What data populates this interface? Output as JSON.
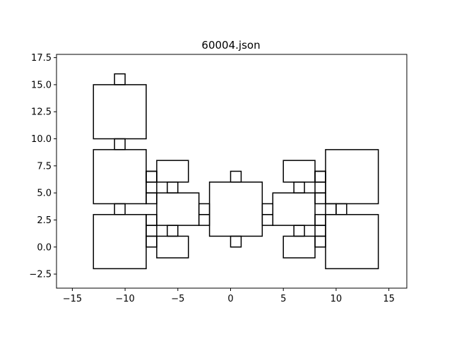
{
  "chart_data": {
    "type": "diagram-rectangles",
    "title": "60004.json",
    "xlabel": "",
    "ylabel": "",
    "xlim": [
      -16.5,
      16.7
    ],
    "ylim": [
      -3.8,
      17.8
    ],
    "xticks": [
      -15,
      -10,
      -5,
      0,
      5,
      10,
      15
    ],
    "yticks": [
      -2.5,
      0.0,
      2.5,
      5.0,
      7.5,
      10.0,
      12.5,
      15.0,
      17.5
    ],
    "xtick_labels": [
      "−15",
      "−10",
      "−5",
      "0",
      "5",
      "10",
      "15"
    ],
    "ytick_labels": [
      "−2.5",
      "0.0",
      "2.5",
      "5.0",
      "7.5",
      "10.0",
      "12.5",
      "15.0",
      "17.5"
    ],
    "grid": false,
    "line_color": "#000000",
    "rectangles": [
      {
        "x0": -13,
        "y0": 10,
        "x1": -8,
        "y1": 15
      },
      {
        "x0": -11,
        "y0": 15,
        "x1": -10,
        "y1": 16
      },
      {
        "x0": -11,
        "y0": 9,
        "x1": -10,
        "y1": 10
      },
      {
        "x0": -13,
        "y0": 4,
        "x1": -8,
        "y1": 9
      },
      {
        "x0": -11,
        "y0": 3,
        "x1": -10,
        "y1": 4
      },
      {
        "x0": -13,
        "y0": -2,
        "x1": -8,
        "y1": 3
      },
      {
        "x0": -8,
        "y0": 7,
        "x1": -7,
        "y1": 6
      },
      {
        "x0": -8,
        "y0": 6,
        "x1": -7,
        "y1": 7
      },
      {
        "x0": -7,
        "y0": 6,
        "x1": -4,
        "y1": 8
      },
      {
        "x0": -8,
        "y0": 5,
        "x1": -7,
        "y1": 6
      },
      {
        "x0": -6,
        "y0": 5,
        "x1": -5,
        "y1": 6
      },
      {
        "x0": -8,
        "y0": 4,
        "x1": -7,
        "y1": 5
      },
      {
        "x0": -7,
        "y0": 2,
        "x1": -3,
        "y1": 5
      },
      {
        "x0": -8,
        "y0": 2,
        "x1": -7,
        "y1": 3
      },
      {
        "x0": -8,
        "y0": 1,
        "x1": -7,
        "y1": 2
      },
      {
        "x0": -6,
        "y0": 1,
        "x1": -5,
        "y1": 2
      },
      {
        "x0": -8,
        "y0": 0,
        "x1": -7,
        "y1": 1
      },
      {
        "x0": -7,
        "y0": -1,
        "x1": -4,
        "y1": 1
      },
      {
        "x0": -3,
        "y0": 3,
        "x1": -2,
        "y1": 4
      },
      {
        "x0": -3,
        "y0": 2,
        "x1": -2,
        "y1": 3
      },
      {
        "x0": -2,
        "y0": 1,
        "x1": 3,
        "y1": 6
      },
      {
        "x0": 0,
        "y0": 6,
        "x1": 1,
        "y1": 7
      },
      {
        "x0": 0,
        "y0": 0,
        "x1": 1,
        "y1": 1
      },
      {
        "x0": 3,
        "y0": 3,
        "x1": 4,
        "y1": 4
      },
      {
        "x0": 3,
        "y0": 2,
        "x1": 4,
        "y1": 3
      },
      {
        "x0": 5,
        "y0": 6,
        "x1": 8,
        "y1": 8
      },
      {
        "x0": 6,
        "y0": 5,
        "x1": 7,
        "y1": 6
      },
      {
        "x0": 4,
        "y0": 2,
        "x1": 8,
        "y1": 5
      },
      {
        "x0": 6,
        "y0": 1,
        "x1": 7,
        "y1": 2
      },
      {
        "x0": 5,
        "y0": -1,
        "x1": 8,
        "y1": 1
      },
      {
        "x0": 8,
        "y0": 7,
        "x1": 9,
        "y1": 6
      },
      {
        "x0": 8,
        "y0": 6,
        "x1": 9,
        "y1": 7
      },
      {
        "x0": 8,
        "y0": 5,
        "x1": 9,
        "y1": 6
      },
      {
        "x0": 8,
        "y0": 4,
        "x1": 9,
        "y1": 5
      },
      {
        "x0": 8,
        "y0": 2,
        "x1": 9,
        "y1": 3
      },
      {
        "x0": 8,
        "y0": 1,
        "x1": 9,
        "y1": 2
      },
      {
        "x0": 8,
        "y0": 0,
        "x1": 9,
        "y1": 1
      },
      {
        "x0": 9,
        "y0": 4,
        "x1": 14,
        "y1": 9
      },
      {
        "x0": 9,
        "y0": 3,
        "x1": 10,
        "y1": 4
      },
      {
        "x0": 10,
        "y0": 3,
        "x1": 11,
        "y1": 4
      },
      {
        "x0": 9,
        "y0": -2,
        "x1": 14,
        "y1": 3
      }
    ]
  }
}
